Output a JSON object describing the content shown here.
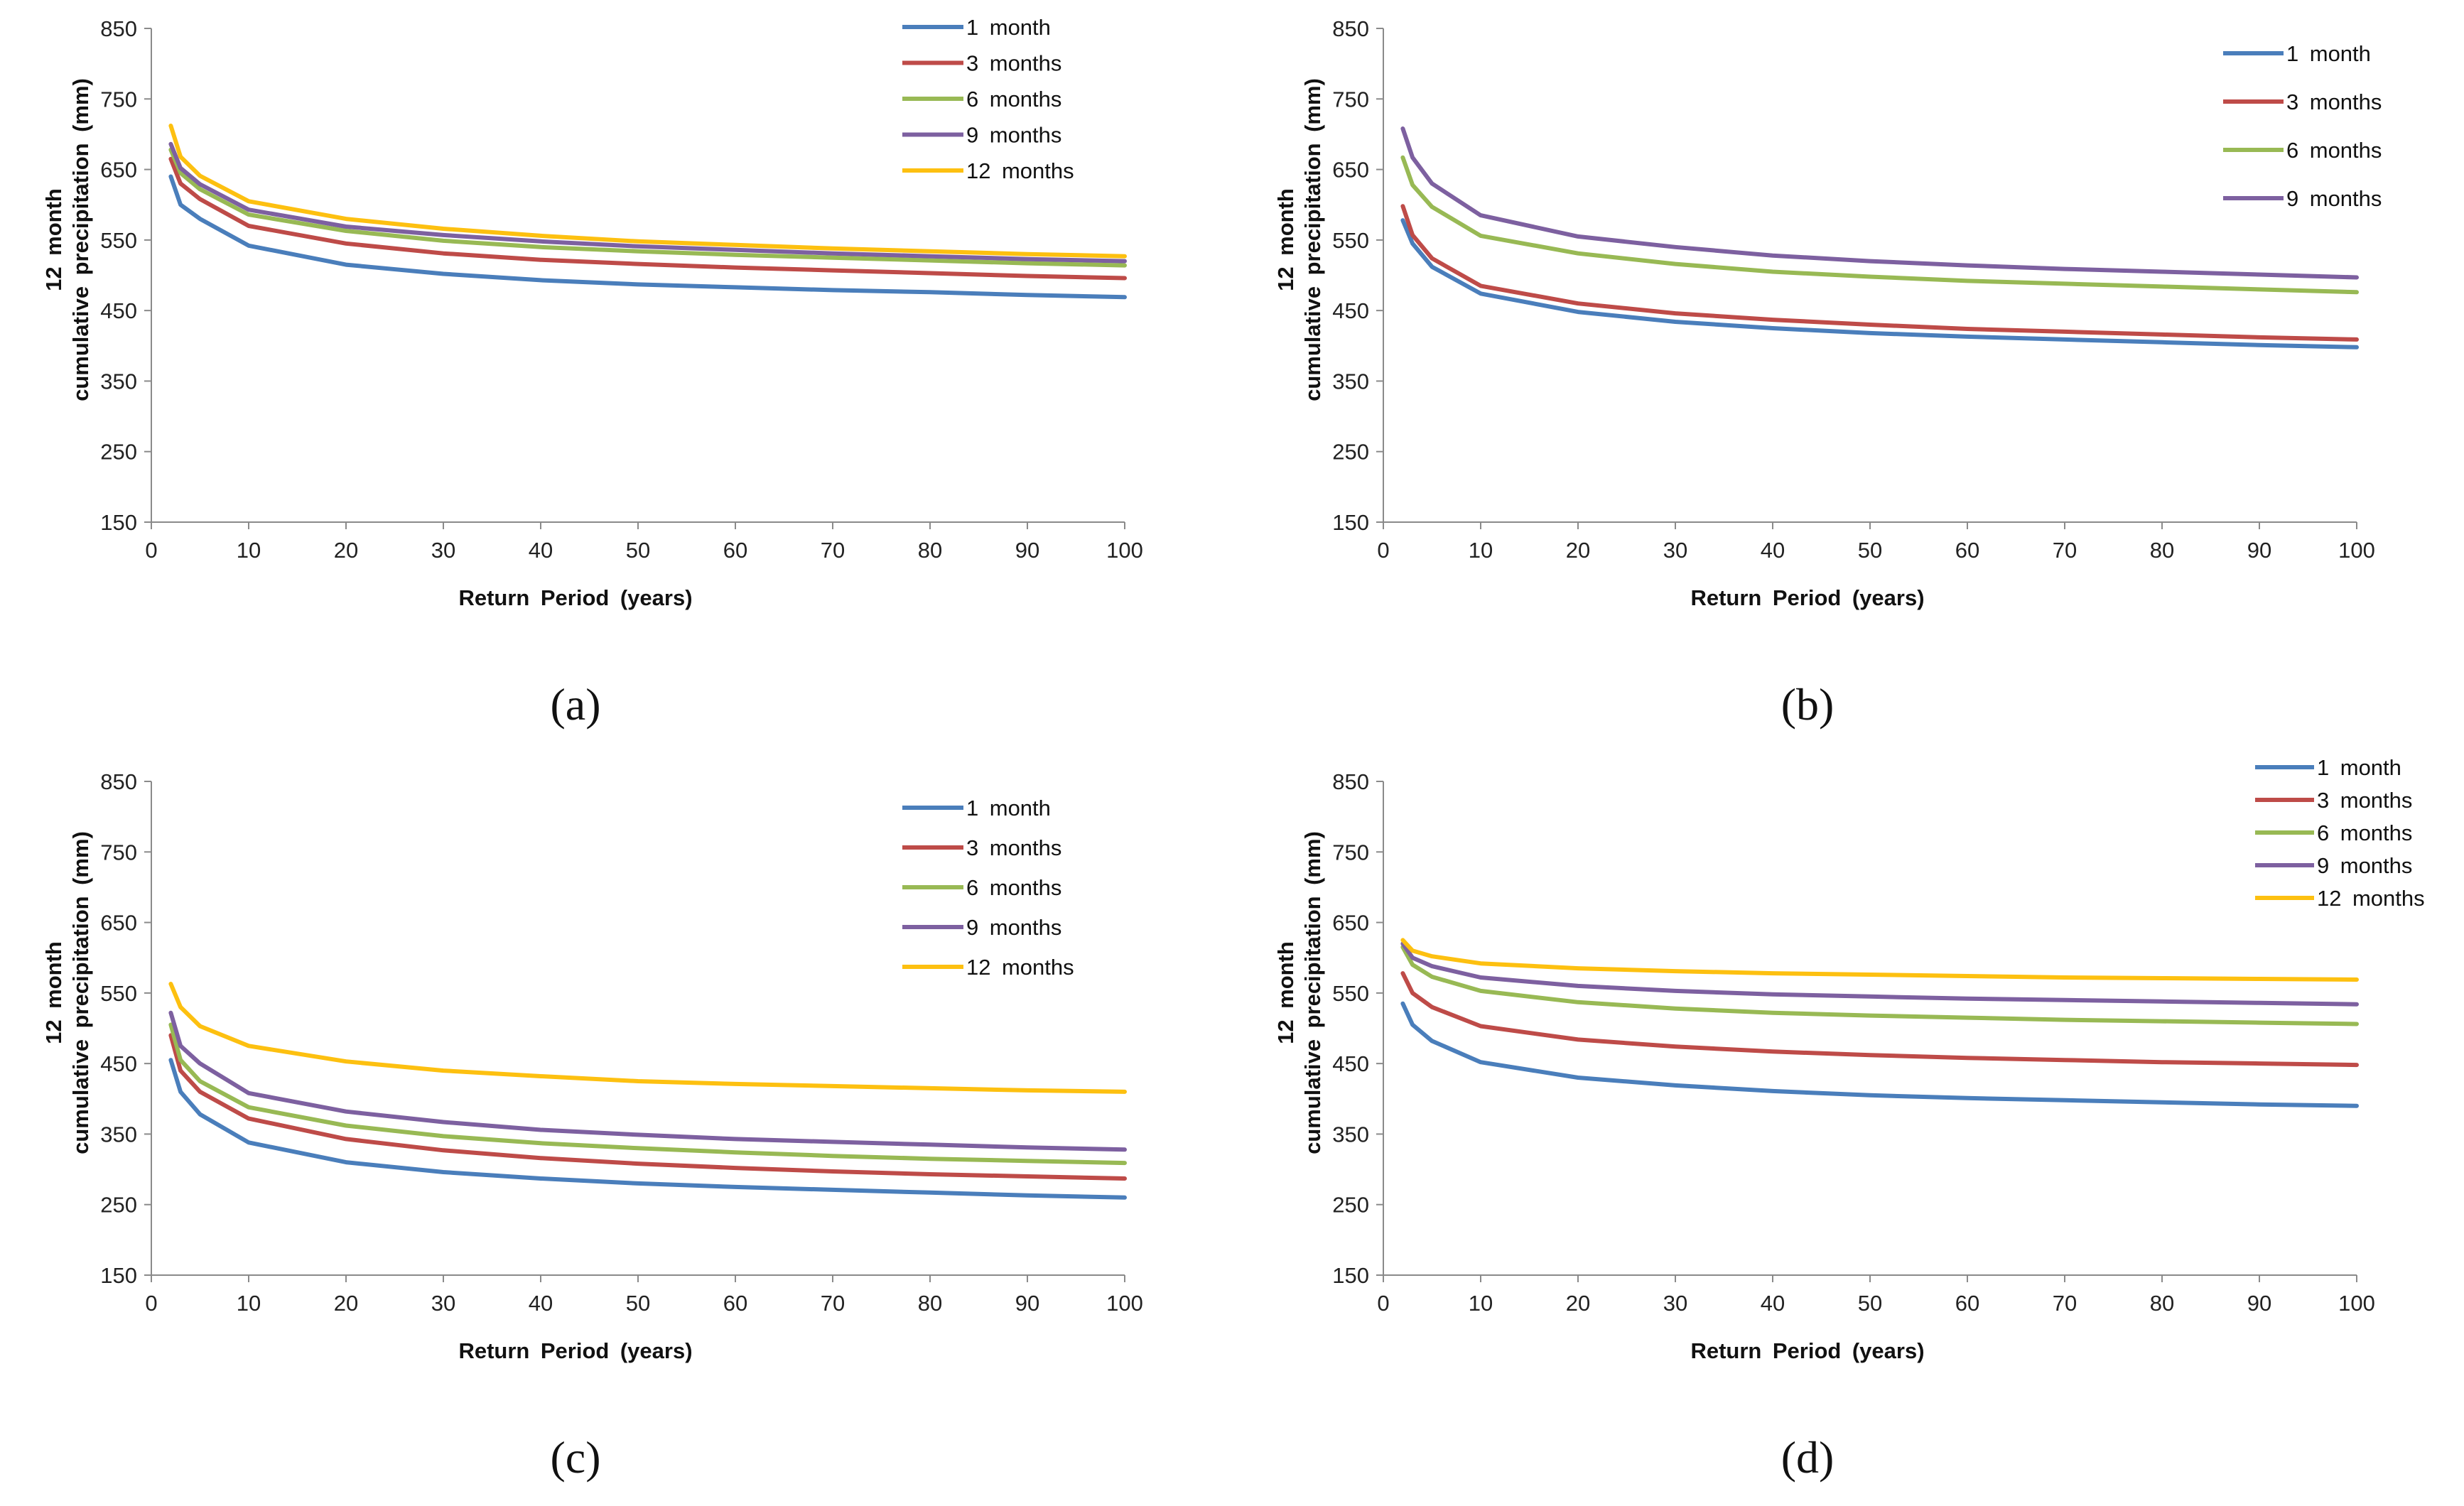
{
  "chart_data": [
    {
      "type": "line",
      "panel_label": "(a)",
      "xlabel": "Return Period (years)",
      "ylabel_lines": [
        "12 month",
        "cumulative precipitation (mm)"
      ],
      "xlim": [
        0,
        100
      ],
      "ylim": [
        150,
        850
      ],
      "xticks": [
        0,
        10,
        20,
        30,
        40,
        50,
        60,
        70,
        80,
        90,
        100
      ],
      "yticks": [
        150,
        250,
        350,
        450,
        550,
        650,
        750,
        850
      ],
      "legend_position": "top-right",
      "x": [
        2,
        3,
        5,
        10,
        20,
        30,
        40,
        50,
        60,
        70,
        80,
        90,
        100
      ],
      "series": [
        {
          "name": "1 month",
          "color": "#4a7ebb",
          "values": [
            640,
            600,
            580,
            542,
            515,
            502,
            493,
            487,
            483,
            479,
            476,
            472,
            469
          ]
        },
        {
          "name": "3 months",
          "color": "#be4b48",
          "values": [
            665,
            630,
            608,
            570,
            545,
            531,
            522,
            516,
            511,
            507,
            503,
            499,
            496
          ]
        },
        {
          "name": "6 months",
          "color": "#98b954",
          "values": [
            678,
            645,
            622,
            586,
            563,
            549,
            540,
            534,
            529,
            525,
            521,
            517,
            514
          ]
        },
        {
          "name": "9 months",
          "color": "#7d60a0",
          "values": [
            686,
            652,
            629,
            593,
            569,
            557,
            548,
            541,
            536,
            531,
            527,
            523,
            520
          ]
        },
        {
          "name": "12 months",
          "color": "#fdc010",
          "values": [
            712,
            668,
            641,
            605,
            580,
            566,
            556,
            548,
            543,
            538,
            534,
            530,
            527
          ]
        }
      ]
    },
    {
      "type": "line",
      "panel_label": "(b)",
      "xlabel": "Return Period (years)",
      "ylabel_lines": [
        "12 month",
        "cumulative precipitation (mm)"
      ],
      "xlim": [
        0,
        100
      ],
      "ylim": [
        150,
        850
      ],
      "xticks": [
        0,
        10,
        20,
        30,
        40,
        50,
        60,
        70,
        80,
        90,
        100
      ],
      "yticks": [
        150,
        250,
        350,
        450,
        550,
        650,
        750,
        850
      ],
      "legend_position": "top-right",
      "x": [
        2,
        3,
        5,
        10,
        20,
        30,
        40,
        50,
        60,
        70,
        80,
        90,
        100
      ],
      "series": [
        {
          "name": "1 month",
          "color": "#4a7ebb",
          "values": [
            578,
            545,
            512,
            474,
            448,
            434,
            425,
            418,
            413,
            409,
            405,
            401,
            398
          ]
        },
        {
          "name": "3 months",
          "color": "#be4b48",
          "values": [
            598,
            557,
            524,
            485,
            460,
            446,
            437,
            430,
            424,
            420,
            416,
            412,
            409
          ]
        },
        {
          "name": "6 months",
          "color": "#98b954",
          "values": [
            667,
            628,
            597,
            556,
            531,
            516,
            505,
            498,
            492,
            488,
            484,
            480,
            476
          ]
        },
        {
          "name": "9 months",
          "color": "#7d60a0",
          "values": [
            708,
            667,
            630,
            585,
            555,
            540,
            528,
            520,
            514,
            509,
            505,
            501,
            497
          ]
        }
      ]
    },
    {
      "type": "line",
      "panel_label": "(c)",
      "xlabel": "Return Period (years)",
      "ylabel_lines": [
        "12 month",
        "cumulative precipitation (mm)"
      ],
      "xlim": [
        0,
        100
      ],
      "ylim": [
        150,
        850
      ],
      "xticks": [
        0,
        10,
        20,
        30,
        40,
        50,
        60,
        70,
        80,
        90,
        100
      ],
      "yticks": [
        150,
        250,
        350,
        450,
        550,
        650,
        750,
        850
      ],
      "legend_position": "top-right",
      "x": [
        2,
        3,
        5,
        10,
        20,
        30,
        40,
        50,
        60,
        70,
        80,
        90,
        100
      ],
      "series": [
        {
          "name": "1 month",
          "color": "#4a7ebb",
          "values": [
            455,
            410,
            378,
            338,
            310,
            296,
            287,
            280,
            275,
            271,
            267,
            263,
            260
          ]
        },
        {
          "name": "3 months",
          "color": "#be4b48",
          "values": [
            490,
            440,
            410,
            372,
            343,
            327,
            316,
            308,
            302,
            297,
            293,
            290,
            287
          ]
        },
        {
          "name": "6 months",
          "color": "#98b954",
          "values": [
            505,
            455,
            425,
            388,
            362,
            347,
            337,
            330,
            324,
            319,
            315,
            312,
            309
          ]
        },
        {
          "name": "9 months",
          "color": "#7d60a0",
          "values": [
            522,
            475,
            450,
            408,
            382,
            367,
            356,
            349,
            343,
            339,
            335,
            331,
            328
          ]
        },
        {
          "name": "12 months",
          "color": "#fdc010",
          "values": [
            563,
            530,
            503,
            475,
            453,
            440,
            432,
            425,
            421,
            418,
            415,
            412,
            410
          ]
        }
      ]
    },
    {
      "type": "line",
      "panel_label": "(d)",
      "xlabel": "Return Period (years)",
      "ylabel_lines": [
        "12 month",
        "cumulative precipitation (mm)"
      ],
      "xlim": [
        0,
        100
      ],
      "ylim": [
        150,
        850
      ],
      "xticks": [
        0,
        10,
        20,
        30,
        40,
        50,
        60,
        70,
        80,
        90,
        100
      ],
      "yticks": [
        150,
        250,
        350,
        450,
        550,
        650,
        750,
        850
      ],
      "legend_position": "top-right",
      "x": [
        2,
        3,
        5,
        10,
        20,
        30,
        40,
        50,
        60,
        70,
        80,
        90,
        100
      ],
      "series": [
        {
          "name": "1 month",
          "color": "#4a7ebb",
          "values": [
            535,
            505,
            482,
            452,
            430,
            419,
            411,
            405,
            401,
            398,
            395,
            392,
            390
          ]
        },
        {
          "name": "3 months",
          "color": "#be4b48",
          "values": [
            578,
            550,
            530,
            503,
            484,
            474,
            467,
            462,
            458,
            455,
            452,
            450,
            448
          ]
        },
        {
          "name": "6 months",
          "color": "#98b954",
          "values": [
            615,
            590,
            573,
            553,
            537,
            528,
            522,
            518,
            515,
            512,
            510,
            508,
            506
          ]
        },
        {
          "name": "9 months",
          "color": "#7d60a0",
          "values": [
            620,
            600,
            588,
            572,
            560,
            553,
            548,
            545,
            542,
            540,
            538,
            536,
            534
          ]
        },
        {
          "name": "12 months",
          "color": "#fdc010",
          "values": [
            625,
            610,
            602,
            592,
            585,
            581,
            578,
            576,
            574,
            572,
            571,
            570,
            569
          ]
        }
      ]
    }
  ]
}
